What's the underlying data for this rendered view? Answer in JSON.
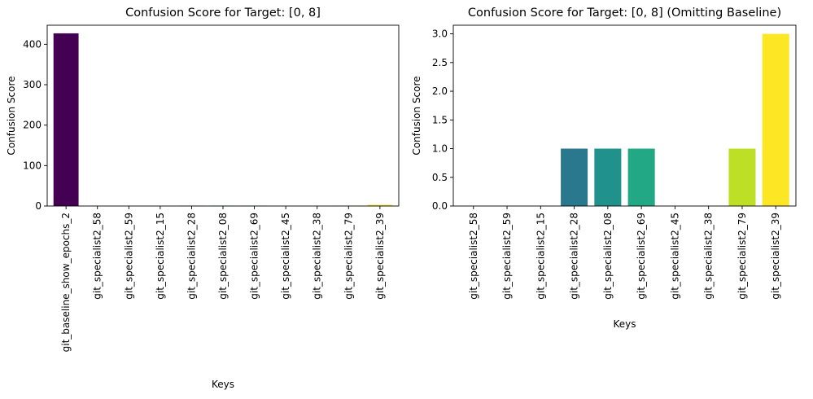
{
  "chart_data": [
    {
      "type": "bar",
      "title": "Confusion Score for Target: [0, 8]",
      "xlabel": "Keys",
      "ylabel": "Confusion Score",
      "ylim": [
        0,
        447
      ],
      "yticks": [
        0,
        100,
        200,
        300,
        400
      ],
      "ytick_labels": [
        "0",
        "100",
        "200",
        "300",
        "400"
      ],
      "grid": false,
      "categories": [
        "git_baseline_show_epochs_2",
        "git_specialist2_58",
        "git_specialist2_59",
        "git_specialist2_15",
        "git_specialist2_28",
        "git_specialist2_08",
        "git_specialist2_69",
        "git_specialist2_45",
        "git_specialist2_38",
        "git_specialist2_79",
        "git_specialist2_39"
      ],
      "values": [
        427,
        0,
        0,
        0,
        1,
        1,
        1,
        0,
        0,
        1,
        3
      ],
      "colors": [
        "#440154",
        "#482475",
        "#414487",
        "#355f8d",
        "#2a788e",
        "#21918c",
        "#22a884",
        "#44bf70",
        "#7ad151",
        "#bddf26",
        "#fde725"
      ]
    },
    {
      "type": "bar",
      "title": "Confusion Score for Target: [0, 8] (Omitting Baseline)",
      "xlabel": "Keys",
      "ylabel": "Confusion Score",
      "ylim": [
        0,
        3.15
      ],
      "yticks": [
        0,
        0.5,
        1.0,
        1.5,
        2.0,
        2.5,
        3.0
      ],
      "ytick_labels": [
        "0.0",
        "0.5",
        "1.0",
        "1.5",
        "2.0",
        "2.5",
        "3.0"
      ],
      "grid": false,
      "categories": [
        "git_specialist2_58",
        "git_specialist2_59",
        "git_specialist2_15",
        "git_specialist2_28",
        "git_specialist2_08",
        "git_specialist2_69",
        "git_specialist2_45",
        "git_specialist2_38",
        "git_specialist2_79",
        "git_specialist2_39"
      ],
      "values": [
        0,
        0,
        0,
        1,
        1,
        1,
        0,
        0,
        1,
        3
      ],
      "colors": [
        "#482878",
        "#3e4989",
        "#31688e",
        "#2a788e",
        "#21918c",
        "#22a884",
        "#35b779",
        "#6ece58",
        "#bddf26",
        "#fde725"
      ]
    }
  ]
}
